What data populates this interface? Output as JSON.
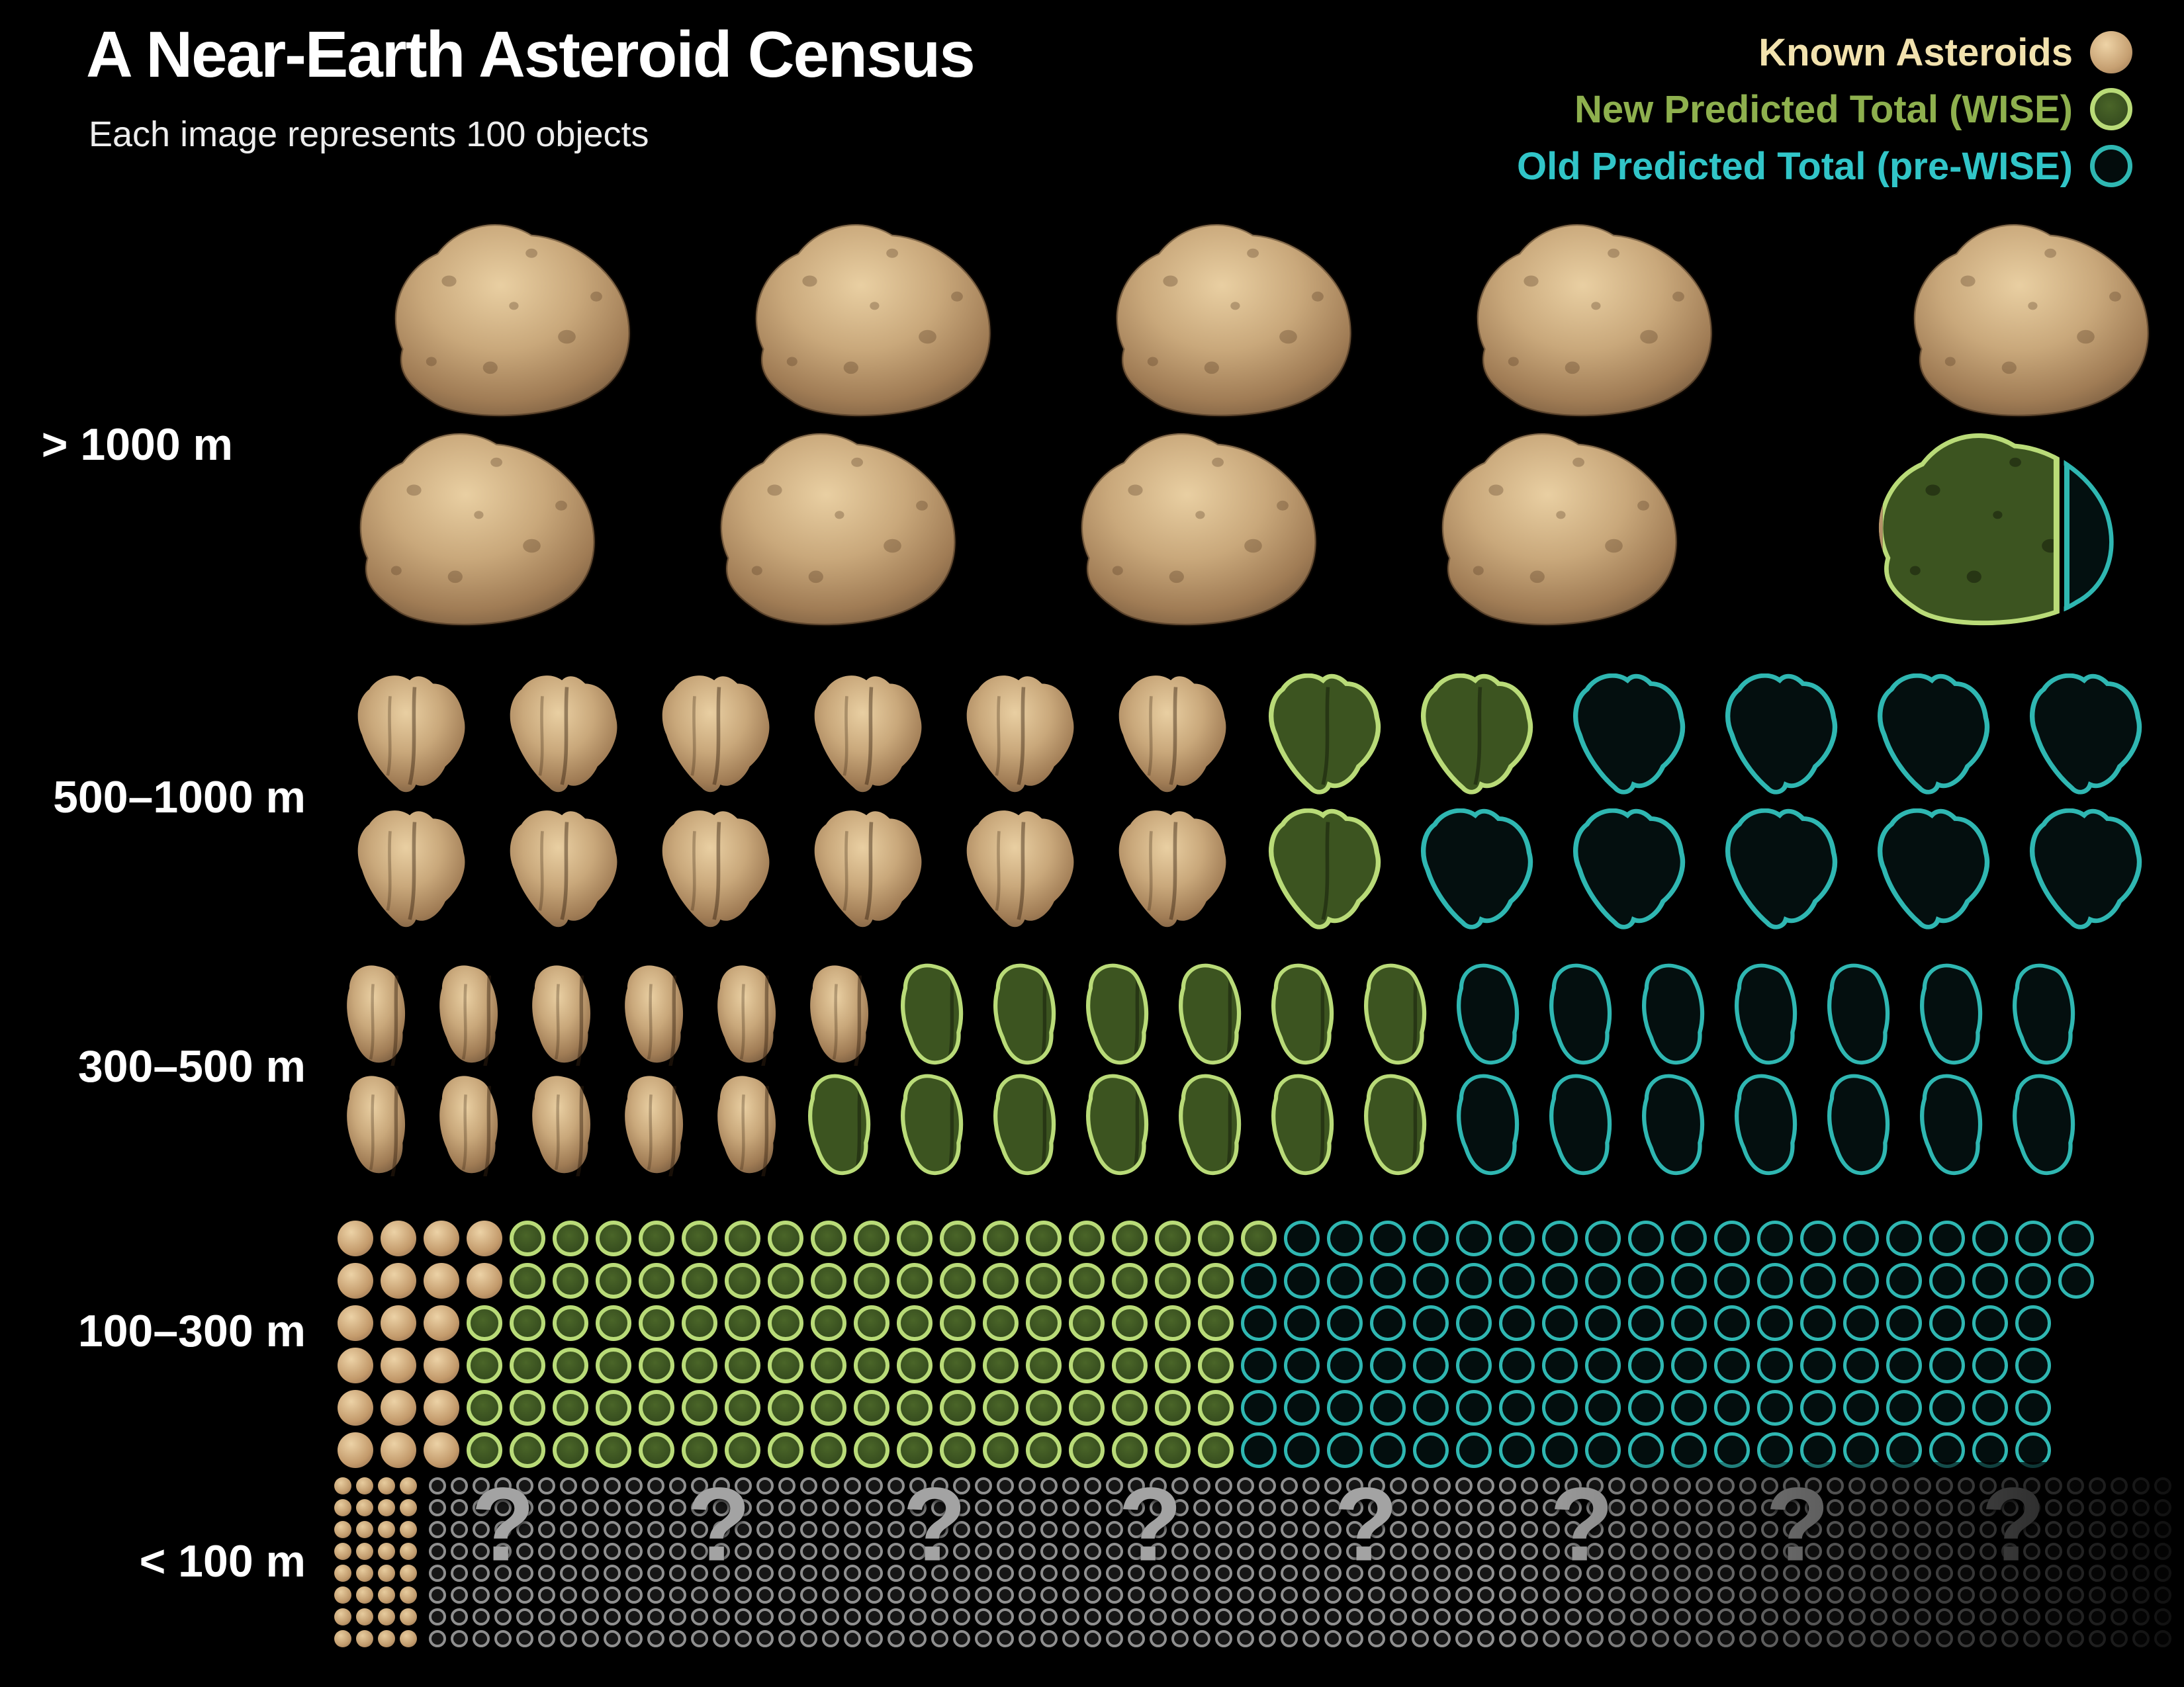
{
  "header": {
    "title": "A Near-Earth Asteroid Census",
    "subtitle": "Each image represents 100 objects"
  },
  "legend": {
    "items": [
      {
        "id": "known",
        "label": "Known Asteroids",
        "color": "#f2e2ae",
        "swatch": "filled-tan-circle"
      },
      {
        "id": "new",
        "label": "New Predicted Total (WISE)",
        "color": "#8eb04e",
        "swatch": "green-disc-light-green-ring"
      },
      {
        "id": "old",
        "label": "Old Predicted Total (pre-WISE)",
        "color": "#31c5c8",
        "swatch": "teal-outline-circle"
      }
    ]
  },
  "chart_data": {
    "type": "pictograph",
    "objects_per_icon": 100,
    "categories": [
      "> 1000 m",
      "500–1000 m",
      "300–500 m",
      "100–300 m",
      "< 100 m"
    ],
    "series_legend": [
      "Known Asteroids",
      "New Predicted Total (WISE)",
      "Old Predicted Total (pre-WISE)"
    ],
    "rows": [
      {
        "size_range": "> 1000 m",
        "icon_type": "large-asteroid",
        "lines": [
          {
            "known": 5,
            "new": 0,
            "old": 0
          },
          {
            "known": 4,
            "new": 0,
            "old": 0,
            "hybrid": {
              "known_fraction": 0.13,
              "new_fraction": 0.59,
              "old_fraction": 0.28
            }
          }
        ],
        "icons_total": 10,
        "approx_objects": {
          "known": 910,
          "new_predicted": 980,
          "old_predicted": 1000
        }
      },
      {
        "size_range": "500–1000 m",
        "icon_type": "rubble-asteroid",
        "lines": [
          {
            "known": 6,
            "new": 2,
            "old": 4
          },
          {
            "known": 6,
            "new": 1,
            "old": 5
          }
        ],
        "icons_total": 24,
        "approx_objects": {
          "known": 1200,
          "new_predicted": 1500,
          "old_predicted": 2400
        }
      },
      {
        "size_range": "300–500 m",
        "icon_type": "small-asteroid",
        "lines": [
          {
            "known": 6,
            "new": 6,
            "old": 7
          },
          {
            "known": 5,
            "new": 7,
            "old": 7
          }
        ],
        "icons_total": 38,
        "approx_objects": {
          "known": 1100,
          "new_predicted": 2400,
          "old_predicted": 3800
        }
      },
      {
        "size_range": "100–300 m",
        "icon_type": "small-circle",
        "lines": [
          {
            "known": 4,
            "new": 18,
            "old": 19
          },
          {
            "known": 4,
            "new": 17,
            "old": 20
          },
          {
            "known": 3,
            "new": 18,
            "old": 19
          },
          {
            "known": 3,
            "new": 18,
            "old": 19
          },
          {
            "known": 3,
            "new": 18,
            "old": 19
          },
          {
            "known": 3,
            "new": 18,
            "old": 19
          }
        ],
        "icons_total": 242,
        "approx_objects": {
          "known": 2000,
          "new_predicted": 12700,
          "old_predicted": 24200
        }
      },
      {
        "size_range": "< 100 m",
        "icon_type": "tiny-dot",
        "lines": [
          {
            "known": 4,
            "unknown": 80
          },
          {
            "known": 4,
            "unknown": 80
          },
          {
            "known": 4,
            "unknown": 80
          },
          {
            "known": 4,
            "unknown": 80
          },
          {
            "known": 4,
            "unknown": 80
          },
          {
            "known": 4,
            "unknown": 80
          },
          {
            "known": 4,
            "unknown": 80
          },
          {
            "known": 4,
            "unknown": 80
          }
        ],
        "question_marks": 8,
        "icons_total": 672,
        "approx_objects": {
          "known": 3200,
          "new_predicted": "unknown",
          "old_predicted": "unknown"
        }
      }
    ]
  },
  "colors": {
    "background": "#000000",
    "title": "#ffffff",
    "row_label": "#ffffff",
    "known_tan": "#c9a87b",
    "new_green_fill": "#3c5420",
    "new_green_outline": "#b9db78",
    "old_teal_outline": "#2fb7b2",
    "unknown_gray_ring": "#8f8f8f",
    "question_mark": "#a3a3a3",
    "legend_known_text": "#f2e2ae",
    "legend_new_text": "#8eb04e",
    "legend_old_text": "#31c5c8"
  }
}
